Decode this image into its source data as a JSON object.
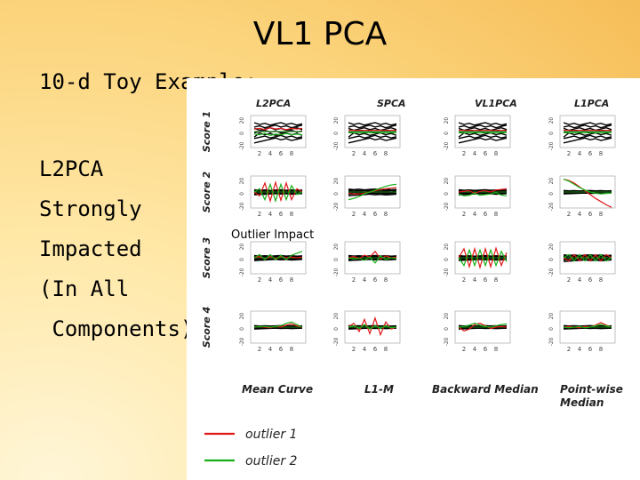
{
  "slide": {
    "title": "VL1 PCA",
    "subtitle": "10-d Toy Example:",
    "body_lines": [
      "L2PCA",
      "Strongly",
      "Impacted",
      "(In All",
      " Components)"
    ]
  },
  "figure": {
    "column_headers": [
      "L2PCA",
      "SPCA",
      "VL1PCA",
      "L1PCA"
    ],
    "row_labels": [
      "Score 1",
      "Score 2",
      "Score 3",
      "Score 4"
    ],
    "footer_labels": [
      "Mean Curve",
      "L1-M",
      "Backward Median",
      "Point-wise\nMedian"
    ],
    "annotation": "Outlier Impact",
    "y_ticks": [
      "-20",
      "0",
      "20"
    ],
    "x_ticks": [
      "2",
      "4",
      "6",
      "8"
    ],
    "legend": [
      {
        "label": "outlier 1",
        "color": "#e01818"
      },
      {
        "label": "outlier 2",
        "color": "#18b018"
      }
    ],
    "colors": {
      "normal": "#000000",
      "outlier1": "#e01818",
      "outlier2": "#18b018",
      "center": "#1a8a1a"
    }
  },
  "chart_data": {
    "type": "line",
    "title": "",
    "grid_rows": [
      "Score 1",
      "Score 2",
      "Score 3",
      "Score 4"
    ],
    "grid_cols": [
      "L2PCA",
      "SPCA",
      "VL1PCA",
      "L1PCA"
    ],
    "x": [
      1,
      2,
      3,
      4,
      5,
      6,
      7,
      8,
      9,
      10
    ],
    "ylim": [
      -25,
      25
    ],
    "panels": [
      {
        "row": 0,
        "col": 0,
        "outlier1": [
          4,
          5,
          3,
          6,
          4,
          5,
          3,
          5,
          4,
          5
        ],
        "outlier2": [
          -4,
          -5,
          -3,
          -6,
          -4,
          -5,
          -3,
          -5,
          -4,
          -5
        ],
        "spread": 12
      },
      {
        "row": 0,
        "col": 1,
        "outlier1": [
          2,
          2,
          2,
          2,
          2,
          2,
          2,
          2,
          2,
          2
        ],
        "outlier2": [
          -2,
          -2,
          -2,
          -2,
          -2,
          -2,
          -2,
          -2,
          -2,
          -2
        ],
        "spread": 12
      },
      {
        "row": 0,
        "col": 2,
        "outlier1": [
          2,
          2,
          2,
          2,
          2,
          2,
          2,
          2,
          2,
          2
        ],
        "outlier2": [
          -2,
          -2,
          -2,
          -2,
          -2,
          -2,
          -2,
          -2,
          -2,
          -2
        ],
        "spread": 12
      },
      {
        "row": 0,
        "col": 3,
        "outlier1": [
          2,
          2,
          2,
          2,
          2,
          2,
          2,
          2,
          2,
          2
        ],
        "outlier2": [
          -2,
          -2,
          -2,
          -2,
          -2,
          -2,
          -2,
          -2,
          -2,
          -2
        ],
        "spread": 12
      },
      {
        "row": 1,
        "col": 0,
        "outlier1": [
          0,
          -6,
          14,
          -14,
          15,
          -13,
          14,
          -12,
          5,
          0
        ],
        "outlier2": [
          0,
          5,
          -12,
          12,
          -14,
          12,
          -12,
          10,
          -4,
          0
        ],
        "spread": 3
      },
      {
        "row": 1,
        "col": 1,
        "outlier1": [
          -2,
          -3,
          -3,
          -2,
          0,
          2,
          4,
          5,
          6,
          7
        ],
        "outlier2": [
          -12,
          -10,
          -7,
          -3,
          0,
          3,
          6,
          9,
          11,
          12
        ],
        "spread": 4
      },
      {
        "row": 1,
        "col": 2,
        "outlier1": [
          0,
          1,
          2,
          -2,
          1,
          2,
          0,
          3,
          4,
          5
        ],
        "outlier2": [
          -3,
          -6,
          -5,
          -2,
          -5,
          -4,
          -3,
          -1,
          -5,
          -6
        ],
        "spread": 3
      },
      {
        "row": 1,
        "col": 3,
        "outlier1": [
          20,
          18,
          14,
          8,
          2,
          -4,
          -10,
          -15,
          -20,
          -24
        ],
        "outlier2": [
          20,
          17,
          12,
          7,
          3,
          0,
          -2,
          -3,
          -2,
          -2
        ],
        "spread": 2
      },
      {
        "row": 2,
        "col": 0,
        "outlier1": [
          0,
          2,
          -2,
          2,
          -1,
          2,
          0,
          1,
          0,
          1
        ],
        "outlier2": [
          0,
          5,
          -3,
          5,
          -3,
          4,
          -3,
          4,
          7,
          10
        ],
        "spread": 3
      },
      {
        "row": 2,
        "col": 1,
        "outlier1": [
          0,
          2,
          -1,
          4,
          1,
          10,
          -2,
          3,
          0,
          1
        ],
        "outlier2": [
          0,
          -2,
          -1,
          -4,
          1,
          -8,
          3,
          -3,
          0,
          -1
        ],
        "spread": 3
      },
      {
        "row": 2,
        "col": 2,
        "outlier1": [
          0,
          14,
          -14,
          14,
          -15,
          14,
          -14,
          15,
          -12,
          8
        ],
        "outlier2": [
          0,
          -12,
          12,
          -12,
          12,
          -12,
          12,
          -12,
          10,
          -6
        ],
        "spread": 3
      },
      {
        "row": 2,
        "col": 3,
        "outlier1": [
          0,
          -5,
          5,
          -5,
          5,
          -5,
          5,
          -5,
          5,
          0
        ],
        "outlier2": [
          0,
          5,
          -5,
          5,
          -5,
          5,
          -5,
          5,
          -5,
          0
        ],
        "spread": 4
      },
      {
        "row": 3,
        "col": 0,
        "outlier1": [
          0,
          1,
          0,
          -1,
          1,
          0,
          3,
          5,
          2,
          0
        ],
        "outlier2": [
          0,
          1,
          1,
          0,
          1,
          2,
          6,
          8,
          4,
          0
        ],
        "spread": 2
      },
      {
        "row": 3,
        "col": 1,
        "outlier1": [
          0,
          6,
          -7,
          12,
          -10,
          14,
          -12,
          8,
          -3,
          0
        ],
        "outlier2": [
          0,
          2,
          -2,
          4,
          -3,
          2,
          -2,
          2,
          -1,
          0
        ],
        "spread": 2
      },
      {
        "row": 3,
        "col": 2,
        "outlier1": [
          0,
          -6,
          -3,
          4,
          6,
          2,
          -2,
          0,
          1,
          0
        ],
        "outlier2": [
          0,
          1,
          3,
          6,
          3,
          1,
          0,
          2,
          4,
          5
        ],
        "spread": 2
      },
      {
        "row": 3,
        "col": 3,
        "outlier1": [
          0,
          1,
          0,
          -1,
          1,
          0,
          3,
          7,
          3,
          0
        ],
        "outlier2": [
          0,
          -1,
          0,
          1,
          -1,
          0,
          2,
          4,
          2,
          0
        ],
        "spread": 2
      }
    ]
  }
}
